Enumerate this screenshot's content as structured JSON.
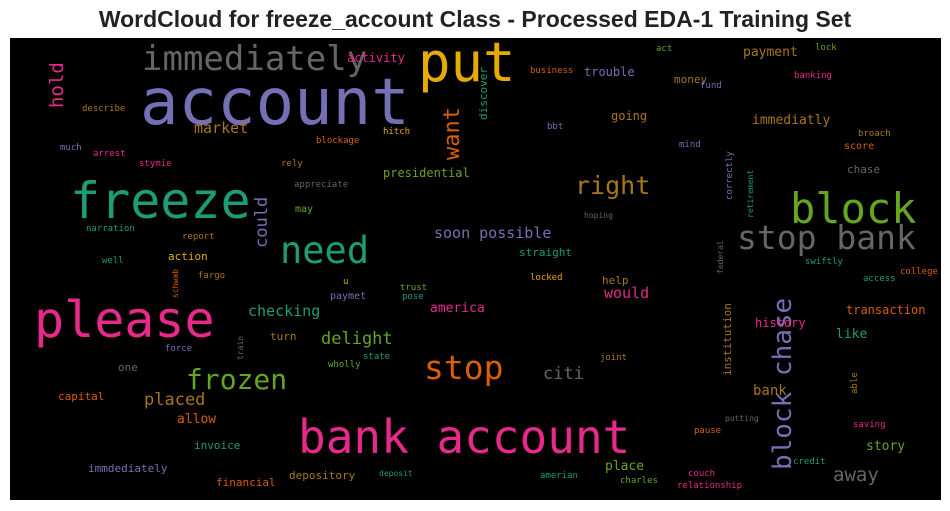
{
  "title": "WordCloud for freeze_account Class - Processed EDA-1 Training Set",
  "palette": {
    "purple": "#7570b3",
    "green": "#1b9e77",
    "pink": "#e7298a",
    "orange": "#d95f02",
    "lime": "#66a61e",
    "gold": "#e6ab02",
    "brown": "#a6761d",
    "gray": "#666666"
  },
  "chart_data": {
    "type": "wordcloud",
    "background": "#000000",
    "words": [
      {
        "text": "account",
        "color": "purple"
      },
      {
        "text": "put",
        "color": "gold"
      },
      {
        "text": "immediately",
        "color": "gray"
      },
      {
        "text": "freeze",
        "color": "green"
      },
      {
        "text": "please",
        "color": "pink"
      },
      {
        "text": "bank account",
        "color": "pink"
      },
      {
        "text": "block",
        "color": "lime"
      },
      {
        "text": "stop bank",
        "color": "gray"
      },
      {
        "text": "need",
        "color": "green"
      },
      {
        "text": "stop",
        "color": "orange"
      },
      {
        "text": "frozen",
        "color": "lime"
      },
      {
        "text": "block chase",
        "color": "purple"
      },
      {
        "text": "right",
        "color": "brown"
      },
      {
        "text": "want",
        "color": "orange"
      },
      {
        "text": "hold",
        "color": "pink"
      },
      {
        "text": "could",
        "color": "purple"
      },
      {
        "text": "delight",
        "color": "lime"
      },
      {
        "text": "placed",
        "color": "brown"
      },
      {
        "text": "market",
        "color": "brown"
      },
      {
        "text": "checking",
        "color": "green"
      },
      {
        "text": "citi",
        "color": "gray"
      },
      {
        "text": "away",
        "color": "gray"
      },
      {
        "text": "soon possible",
        "color": "purple"
      },
      {
        "text": "immediatly",
        "color": "brown"
      },
      {
        "text": "would",
        "color": "pink"
      },
      {
        "text": "america",
        "color": "pink"
      },
      {
        "text": "bank",
        "color": "brown"
      },
      {
        "text": "place",
        "color": "lime"
      },
      {
        "text": "allow",
        "color": "orange"
      },
      {
        "text": "story",
        "color": "lime"
      },
      {
        "text": "like",
        "color": "green"
      },
      {
        "text": "transaction",
        "color": "orange"
      },
      {
        "text": "history",
        "color": "pink"
      },
      {
        "text": "payment",
        "color": "brown"
      },
      {
        "text": "trouble",
        "color": "purple"
      },
      {
        "text": "going",
        "color": "brown"
      },
      {
        "text": "money",
        "color": "brown"
      },
      {
        "text": "presidential",
        "color": "lime"
      },
      {
        "text": "institution",
        "color": "brown"
      },
      {
        "text": "activity",
        "color": "pink"
      },
      {
        "text": "discover",
        "color": "green"
      },
      {
        "text": "business",
        "color": "orange"
      },
      {
        "text": "act",
        "color": "lime"
      },
      {
        "text": "lock",
        "color": "lime"
      },
      {
        "text": "fund",
        "color": "purple"
      },
      {
        "text": "banking",
        "color": "pink"
      },
      {
        "text": "describe",
        "color": "brown"
      },
      {
        "text": "bbt",
        "color": "purple"
      },
      {
        "text": "mind",
        "color": "purple"
      },
      {
        "text": "broach",
        "color": "brown"
      },
      {
        "text": "score",
        "color": "orange"
      },
      {
        "text": "chase",
        "color": "gray"
      },
      {
        "text": "retirement",
        "color": "green"
      },
      {
        "text": "correctly",
        "color": "purple"
      },
      {
        "text": "much",
        "color": "purple"
      },
      {
        "text": "arrest",
        "color": "pink"
      },
      {
        "text": "stymie",
        "color": "pink"
      },
      {
        "text": "hitch",
        "color": "gold"
      },
      {
        "text": "blockage",
        "color": "orange"
      },
      {
        "text": "rely",
        "color": "brown"
      },
      {
        "text": "appreciate",
        "color": "gray"
      },
      {
        "text": "may",
        "color": "lime"
      },
      {
        "text": "hoping",
        "color": "gray"
      },
      {
        "text": "narration",
        "color": "green"
      },
      {
        "text": "report",
        "color": "brown"
      },
      {
        "text": "straight",
        "color": "green"
      },
      {
        "text": "action",
        "color": "gold"
      },
      {
        "text": "well",
        "color": "green"
      },
      {
        "text": "schwab",
        "color": "orange"
      },
      {
        "text": "fargo",
        "color": "brown"
      },
      {
        "text": "u",
        "color": "gold"
      },
      {
        "text": "paymet",
        "color": "purple"
      },
      {
        "text": "trust",
        "color": "lime"
      },
      {
        "text": "pose",
        "color": "green"
      },
      {
        "text": "locked",
        "color": "gold"
      },
      {
        "text": "help",
        "color": "brown"
      },
      {
        "text": "federal",
        "color": "gray"
      },
      {
        "text": "swiftly",
        "color": "green"
      },
      {
        "text": "access",
        "color": "green"
      },
      {
        "text": "college",
        "color": "orange"
      },
      {
        "text": "turn",
        "color": "brown"
      },
      {
        "text": "train",
        "color": "gray"
      },
      {
        "text": "force",
        "color": "purple"
      },
      {
        "text": "state",
        "color": "green"
      },
      {
        "text": "wholly",
        "color": "lime"
      },
      {
        "text": "joint",
        "color": "brown"
      },
      {
        "text": "one",
        "color": "gray"
      },
      {
        "text": "able",
        "color": "brown"
      },
      {
        "text": "capital",
        "color": "orange"
      },
      {
        "text": "putting",
        "color": "gray"
      },
      {
        "text": "saving",
        "color": "pink"
      },
      {
        "text": "pause",
        "color": "orange"
      },
      {
        "text": "invoice",
        "color": "green"
      },
      {
        "text": "immdediately",
        "color": "purple"
      },
      {
        "text": "financial",
        "color": "orange"
      },
      {
        "text": "depository",
        "color": "brown"
      },
      {
        "text": "deposit",
        "color": "green"
      },
      {
        "text": "amerian",
        "color": "green"
      },
      {
        "text": "charles",
        "color": "lime"
      },
      {
        "text": "couch",
        "color": "pink"
      },
      {
        "text": "relationship",
        "color": "pink"
      },
      {
        "text": "credit",
        "color": "green"
      }
    ]
  }
}
